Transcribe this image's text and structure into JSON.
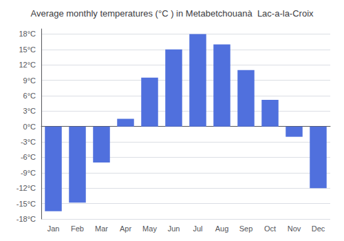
{
  "chart_data": {
    "type": "bar",
    "title": "Average monthly temperatures (°C ) in Metabetchouanà  Lac-a-la-Croix",
    "categories": [
      "Jan",
      "Feb",
      "Mar",
      "Apr",
      "May",
      "Jun",
      "Jul",
      "Aug",
      "Sep",
      "Oct",
      "Nov",
      "Dec"
    ],
    "values": [
      -16.5,
      -14.8,
      -7.0,
      1.5,
      9.5,
      15.0,
      18.0,
      16.0,
      11.0,
      5.2,
      -2.0,
      -12.0
    ],
    "ylim": [
      -18,
      19
    ],
    "yticks": [
      {
        "value": -18,
        "label": "-18°C"
      },
      {
        "value": -15,
        "label": "-15°C"
      },
      {
        "value": -12,
        "label": "-12°C"
      },
      {
        "value": -9,
        "label": "-9°C"
      },
      {
        "value": -6,
        "label": "-6°C"
      },
      {
        "value": -3,
        "label": "-3°C"
      },
      {
        "value": 0,
        "label": "0°C"
      },
      {
        "value": 3,
        "label": "3°C"
      },
      {
        "value": 6,
        "label": "6°C"
      },
      {
        "value": 9,
        "label": "9°C"
      },
      {
        "value": 12,
        "label": "12°C"
      },
      {
        "value": 15,
        "label": "15°C"
      },
      {
        "value": 18,
        "label": "18°C"
      }
    ],
    "grid": true
  }
}
